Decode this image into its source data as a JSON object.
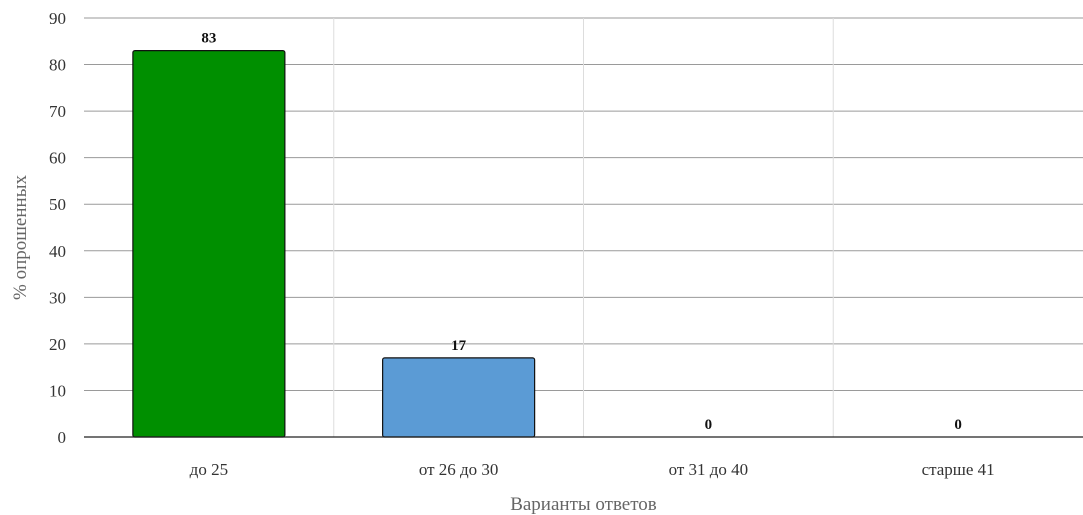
{
  "chart_data": {
    "type": "bar",
    "title": "",
    "xlabel": "Варианты ответов",
    "ylabel": "% опрошенных",
    "categories": [
      "до 25",
      "от 26 до 30",
      "от 31 до 40",
      "старше 41"
    ],
    "values": [
      83,
      17,
      0,
      0
    ],
    "colors": [
      "#008f00",
      "#5b9bd5",
      "#5b9bd5",
      "#5b9bd5"
    ],
    "ylim": [
      0,
      90
    ],
    "yticks": [
      0,
      10,
      20,
      30,
      40,
      50,
      60,
      70,
      80,
      90
    ],
    "grid": true,
    "legend": "none"
  }
}
